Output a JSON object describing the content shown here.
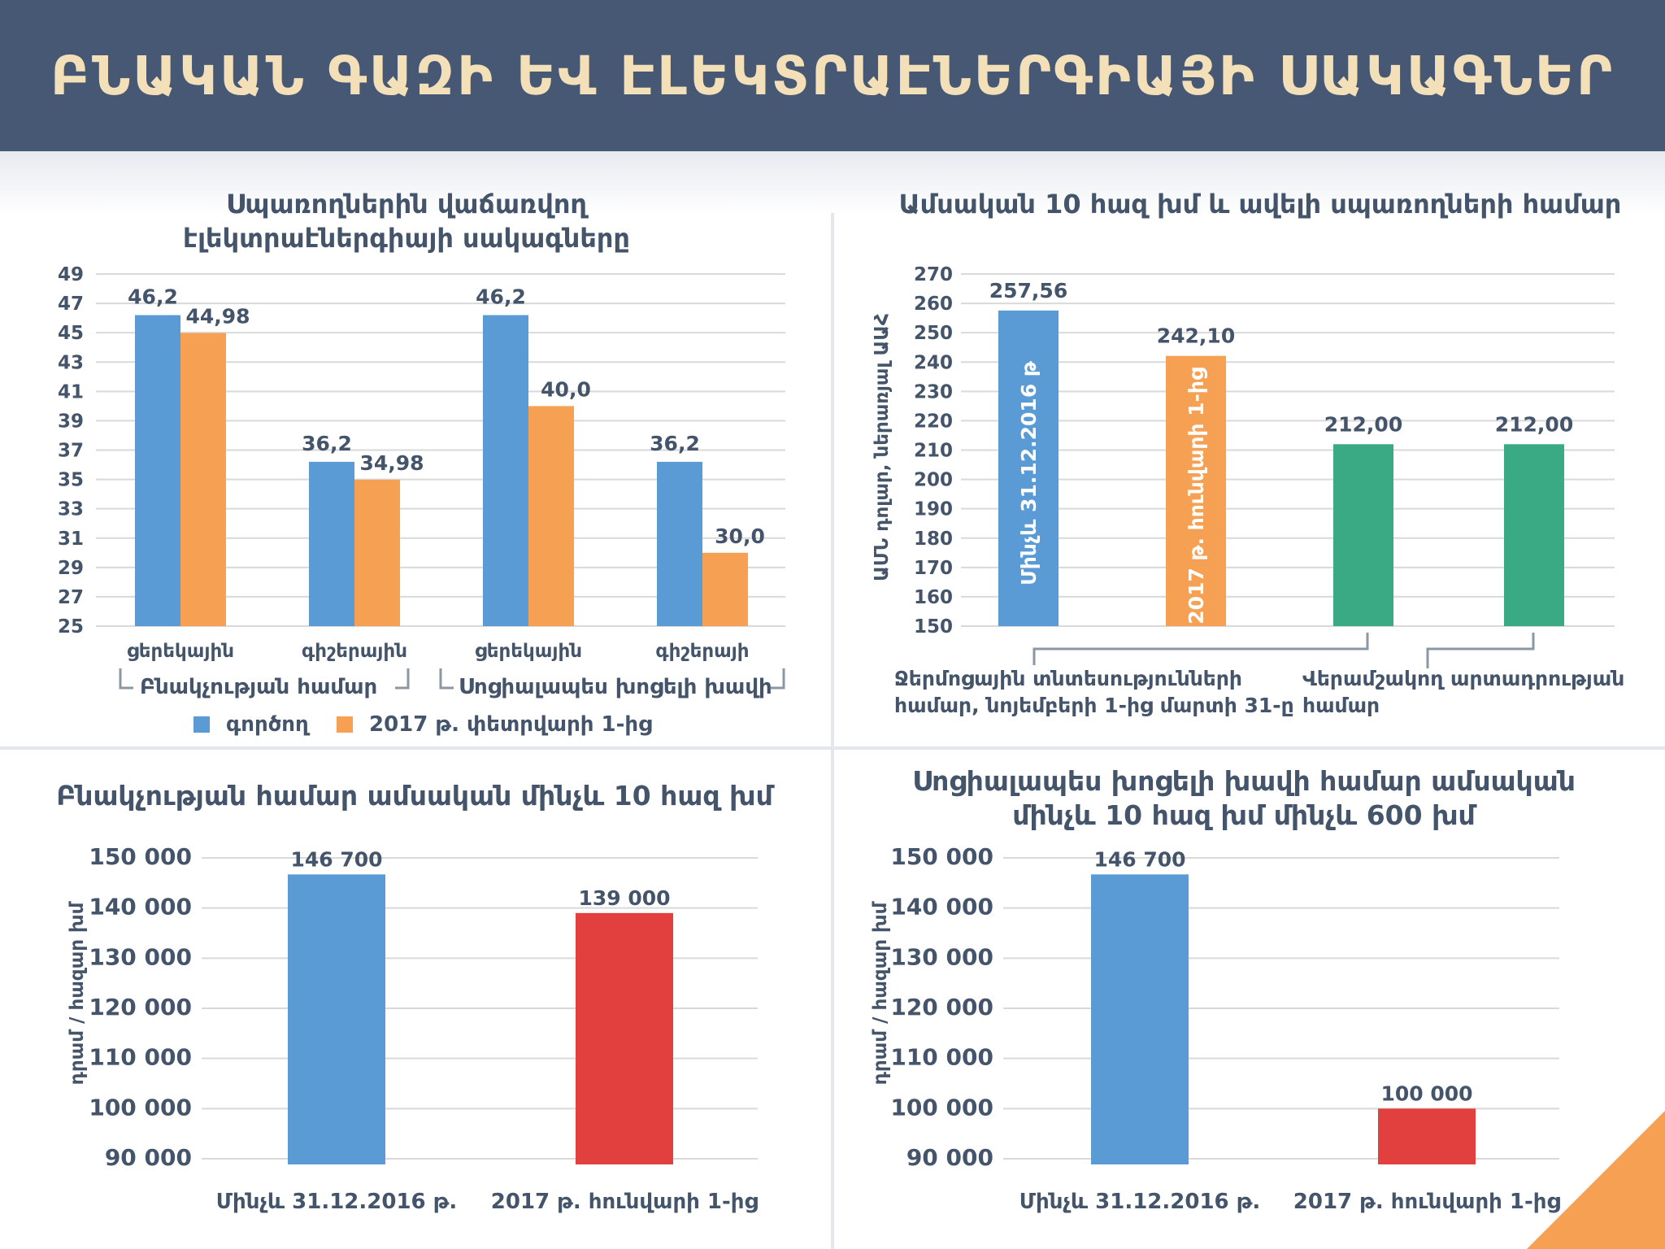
{
  "header": {
    "title": "ԲՆԱԿԱՆ ԳԱԶԻ ԵՎ ԷԼԵԿՏՐԱԷՆԵՐԳԻԱՅԻ ՍԱԿԱԳՆԵՐ"
  },
  "colors": {
    "header_bg": "#475875",
    "title_text": "#f3dfb8",
    "blue": "#5b9bd5",
    "orange": "#f5a052",
    "green": "#3aaa85",
    "red": "#e2403e",
    "text": "#44546a"
  },
  "chart_data": [
    {
      "id": "tl",
      "type": "bar",
      "title": "Սպառողներին վաճառվող էլեկտրաէներգիայի սակագները",
      "categories": [
        "ցերեկային",
        "գիշերային",
        "ցերեկային",
        "գիշերայի"
      ],
      "groups": [
        "Բնակչության համար",
        "Սոցիալապես խոցելի խավի"
      ],
      "series": [
        {
          "name": "գործող",
          "color": "#5b9bd5",
          "values": [
            46.2,
            36.2,
            46.2,
            36.2
          ],
          "labels": [
            "46,2",
            "36,2",
            "46,2",
            "36,2"
          ]
        },
        {
          "name": "2017 թ. փետրվարի 1-ից",
          "color": "#f5a052",
          "values": [
            44.98,
            34.98,
            40.0,
            30.0
          ],
          "labels": [
            "44,98",
            "34,98",
            "40,0",
            "30,0"
          ]
        }
      ],
      "ylim": [
        25,
        49
      ],
      "yticks": [
        "49",
        "47",
        "45",
        "43",
        "41",
        "39",
        "37",
        "35",
        "33",
        "31",
        "29",
        "27",
        "25"
      ],
      "legend": "bottom"
    },
    {
      "id": "tr",
      "type": "bar",
      "title": "Ամսական 10 հազ խմ և ավելի սպառողների համար",
      "ylabel": "ԱՄՆ դոլար, ներառյալ ԱԱՀ",
      "bars": [
        {
          "value": 257.56,
          "label": "257,56",
          "color": "#5b9bd5",
          "inner_label": "Մինչև 31.12.2016 թ"
        },
        {
          "value": 242.1,
          "label": "242,10",
          "color": "#f5a052",
          "inner_label": "2017 թ. հունվարի 1-ից"
        },
        {
          "value": 212.0,
          "label": "212,00",
          "color": "#3aaa85",
          "inner_label": ""
        },
        {
          "value": 212.0,
          "label": "212,00",
          "color": "#3aaa85",
          "inner_label": ""
        }
      ],
      "ylim": [
        150,
        270
      ],
      "yticks": [
        "270",
        "260",
        "250",
        "240",
        "230",
        "220",
        "210",
        "200",
        "190",
        "180",
        "170",
        "160",
        "150"
      ],
      "notes": [
        "Ջերմոցային տնտեսությունների համար, նոյեմբերի 1-ից մարտի 31-ը",
        "Վերամշակող արտադրության համար"
      ]
    },
    {
      "id": "bl",
      "type": "bar",
      "title": "Բնակչության համար ամսական մինչև 10 հազ խմ",
      "ylabel": "դրամ / հազար խմ",
      "categories": [
        "Մինչև 31.12.2016 թ.",
        "2017 թ. հունվարի 1-ից"
      ],
      "values": [
        146700,
        139000
      ],
      "labels": [
        "146 700",
        "139 000"
      ],
      "colors": [
        "#5b9bd5",
        "#e2403e"
      ],
      "ylim": [
        90000,
        150000
      ],
      "yticks": [
        "150 000",
        "140 000",
        "130 000",
        "120 000",
        "110 000",
        "100 000",
        "90 000"
      ]
    },
    {
      "id": "br",
      "type": "bar",
      "title": "Սոցիալապես խոցելի խավի համար ամսական մինչև 10 հազ խմ մինչև 600 խմ",
      "ylabel": "դրամ / հազար խմ",
      "categories": [
        "Մինչև 31.12.2016 թ.",
        "2017 թ. հունվարի 1-ից"
      ],
      "values": [
        146700,
        100000
      ],
      "labels": [
        "146 700",
        "100 000"
      ],
      "colors": [
        "#5b9bd5",
        "#e2403e"
      ],
      "ylim": [
        90000,
        150000
      ],
      "yticks": [
        "150 000",
        "140 000",
        "130 000",
        "120 000",
        "110 000",
        "100 000",
        "90 000"
      ]
    }
  ]
}
